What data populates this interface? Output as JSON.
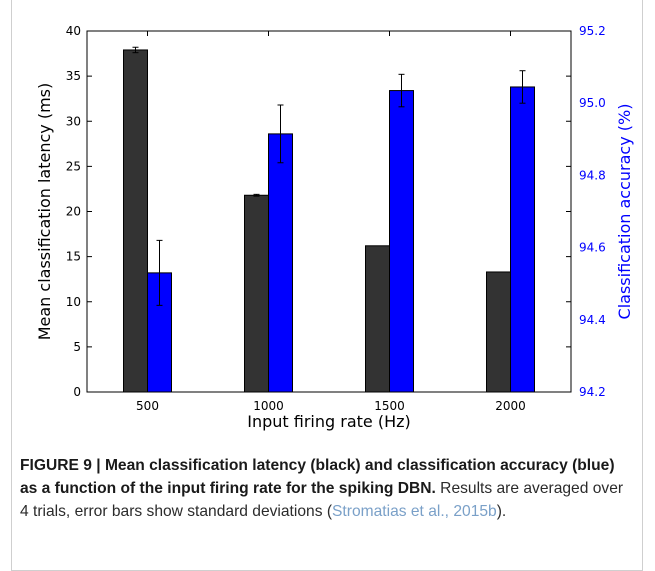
{
  "chart_data": {
    "type": "bar",
    "title": "",
    "xlabel": "Input firing rate (Hz)",
    "ylabel_left": "Mean classification latency (ms)",
    "ylabel_right": "Classification accuracy (%)",
    "categories": [
      "500",
      "1000",
      "1500",
      "2000"
    ],
    "ylim_left": [
      0,
      40
    ],
    "ylim_right": [
      94.2,
      95.2
    ],
    "yticks_left": [
      0,
      5,
      10,
      15,
      20,
      25,
      30,
      35,
      40
    ],
    "yticks_right": [
      "94.2",
      "94.4",
      "94.6",
      "94.8",
      "95.0",
      "95.2"
    ],
    "grid": false,
    "series": [
      {
        "axis": "left",
        "color": "#333333",
        "values": [
          37.9,
          21.8,
          16.2,
          13.3
        ],
        "errors": [
          0.3,
          0.1,
          0.0,
          0.0
        ]
      },
      {
        "axis": "right",
        "color": "#0000ff",
        "values": [
          94.53,
          94.915,
          95.035,
          95.045
        ],
        "errors": [
          0.09,
          0.08,
          0.045,
          0.045
        ]
      }
    ]
  },
  "caption": {
    "bold": "FIGURE 9 | Mean classification latency (black) and classification accuracy (blue) as a function of the input firing rate for the spiking DBN.",
    "text": " Results are averaged over 4 trials, error bars show standard deviations (",
    "citation": "Stromatias et al., 2015b",
    "end": ")."
  }
}
